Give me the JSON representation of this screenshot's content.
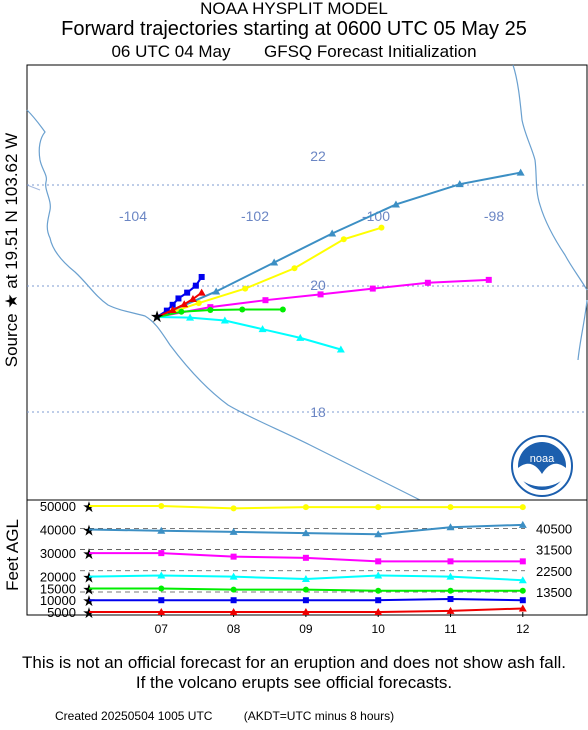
{
  "header": {
    "line1": "NOAA HYSPLIT MODEL",
    "line2": "Forward trajectories starting at 0600 UTC 05 May 25",
    "line3_left": "06 UTC 04 May",
    "line3_right": "GFSQ  Forecast Initialization"
  },
  "side_label": "Source ★  at    19.51 N  103.62 W",
  "map": {
    "lon_labels": [
      "-104",
      "-102",
      "-100",
      "-98"
    ],
    "lat_labels": [
      "22",
      "20",
      "18"
    ],
    "source": {
      "lat": 19.51,
      "lon": -103.62
    },
    "colors": {
      "coast": "#6aa0cf",
      "grid": "#7d9bd0",
      "border": "#000000"
    }
  },
  "logo": {
    "text": "noaa"
  },
  "vertical": {
    "axis_label": "Feet AGL",
    "y_ticks": [
      "50000",
      "40000",
      "30000",
      "20000",
      "15000",
      "10000",
      "5000"
    ],
    "right_labels": [
      "40500",
      "31500",
      "22500",
      "13500"
    ],
    "x_ticks": [
      "07",
      "08",
      "09",
      "10",
      "11",
      "12"
    ]
  },
  "chart_data": {
    "type": "line",
    "title": "Forward trajectories starting at 0600 UTC 05 May 25",
    "x_units": "day of month (UTC)",
    "y_units": "Feet AGL",
    "series": [
      {
        "color": "#ffff00",
        "marker": "circle",
        "heights_ft": [
          50000,
          50000,
          49000,
          49500,
          49500,
          49500,
          49500
        ],
        "track": [
          [
            -103.62,
            19.51
          ],
          [
            -102.9,
            19.75
          ],
          [
            -102.1,
            20.0
          ],
          [
            -101.25,
            20.35
          ],
          [
            -100.4,
            20.85
          ],
          [
            -99.75,
            21.05
          ]
        ]
      },
      {
        "color": "#3c8fc4",
        "marker": "triangle",
        "heights_ft": [
          40000,
          39500,
          39000,
          38500,
          38000,
          41000,
          42000
        ],
        "track": [
          [
            -103.62,
            19.51
          ],
          [
            -102.6,
            19.95
          ],
          [
            -101.6,
            20.45
          ],
          [
            -100.6,
            20.95
          ],
          [
            -99.5,
            21.45
          ],
          [
            -98.4,
            21.8
          ],
          [
            -97.35,
            22.0
          ]
        ]
      },
      {
        "color": "#ff00ff",
        "marker": "square",
        "heights_ft": [
          30000,
          30000,
          28500,
          28000,
          26500,
          26500,
          26500
        ],
        "track": [
          [
            -103.62,
            19.51
          ],
          [
            -102.7,
            19.68
          ],
          [
            -101.75,
            19.8
          ],
          [
            -100.8,
            19.9
          ],
          [
            -99.9,
            20.0
          ],
          [
            -98.95,
            20.1
          ],
          [
            -97.9,
            20.15
          ]
        ]
      },
      {
        "color": "#00ffff",
        "marker": "triangle",
        "heights_ft": [
          20000,
          20500,
          20000,
          19000,
          20500,
          20000,
          18500
        ],
        "track": [
          [
            -103.62,
            19.51
          ],
          [
            -103.05,
            19.5
          ],
          [
            -102.45,
            19.45
          ],
          [
            -101.8,
            19.3
          ],
          [
            -101.15,
            19.15
          ],
          [
            -100.45,
            18.95
          ]
        ]
      },
      {
        "color": "#00ee00",
        "marker": "circle",
        "heights_ft": [
          15000,
          15000,
          14500,
          14500,
          14000,
          14000,
          14000
        ],
        "track": [
          [
            -103.62,
            19.51
          ],
          [
            -103.2,
            19.6
          ],
          [
            -102.7,
            19.63
          ],
          [
            -102.15,
            19.64
          ],
          [
            -101.45,
            19.64
          ]
        ]
      },
      {
        "color": "#0000ee",
        "marker": "square",
        "heights_ft": [
          10000,
          10000,
          10000,
          10000,
          10000,
          10500,
          10000
        ],
        "track": [
          [
            -103.62,
            19.51
          ],
          [
            -103.45,
            19.62
          ],
          [
            -103.35,
            19.72
          ],
          [
            -103.25,
            19.83
          ],
          [
            -103.1,
            19.93
          ],
          [
            -102.95,
            20.05
          ],
          [
            -102.85,
            20.2
          ]
        ]
      },
      {
        "color": "#ee0000",
        "marker": "triangle",
        "heights_ft": [
          5000,
          5000,
          5000,
          5000,
          5000,
          5500,
          6500
        ],
        "track": [
          [
            -103.62,
            19.51
          ],
          [
            -103.35,
            19.63
          ],
          [
            -103.15,
            19.73
          ],
          [
            -103.0,
            19.82
          ],
          [
            -102.85,
            19.93
          ]
        ]
      }
    ]
  },
  "disclaimer": "This is not an official forecast for an eruption and does not show ash fall. If the volcano erupts see official forecasts.",
  "footer": {
    "created": "Created 20250504 1005 UTC",
    "note": "(AKDT=UTC minus 8 hours)"
  }
}
